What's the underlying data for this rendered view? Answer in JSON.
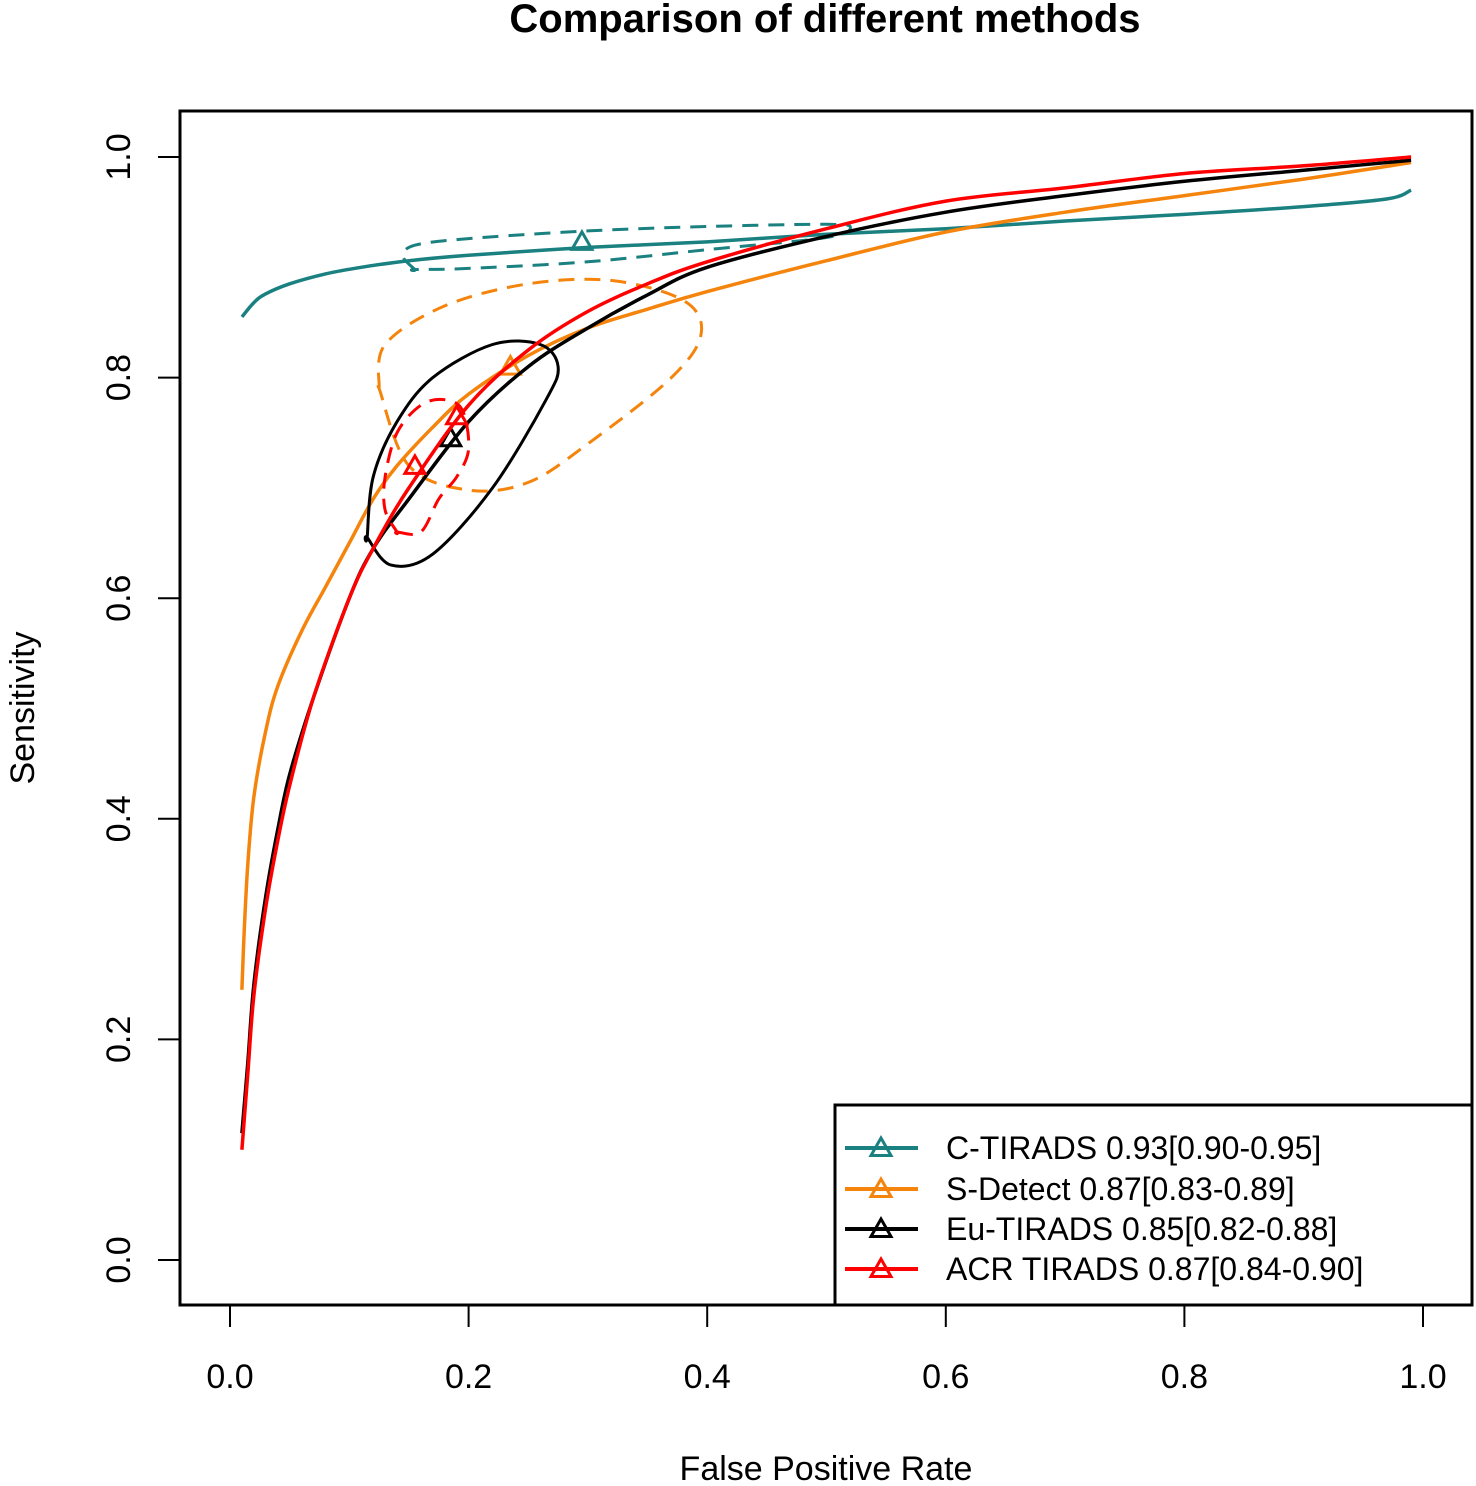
{
  "chart_data": {
    "type": "line",
    "title": "Comparison of different methods",
    "xlabel": "False Positive Rate",
    "ylabel": "Sensitivity",
    "xlim": [
      0.0,
      1.0
    ],
    "ylim": [
      0.0,
      1.0
    ],
    "x_ticks": [
      "0.0",
      "0.2",
      "0.4",
      "0.6",
      "0.8",
      "1.0"
    ],
    "y_ticks": [
      "0.0",
      "0.2",
      "0.4",
      "0.6",
      "0.8",
      "1.0"
    ],
    "grid": false,
    "legend_position": "bottom-right",
    "series": [
      {
        "name": "C-TIRADS",
        "legend_label": "C-TIRADS 0.93[0.90-0.95]",
        "color": "#1a8080",
        "marker": "triangle",
        "summary_point": [
          0.295,
          0.923
        ],
        "roc": [
          [
            0.01,
            0.855
          ],
          [
            0.02,
            0.868
          ],
          [
            0.03,
            0.876
          ],
          [
            0.05,
            0.885
          ],
          [
            0.08,
            0.894
          ],
          [
            0.11,
            0.9
          ],
          [
            0.15,
            0.906
          ],
          [
            0.2,
            0.911
          ],
          [
            0.3,
            0.918
          ],
          [
            0.4,
            0.923
          ],
          [
            0.5,
            0.93
          ],
          [
            0.6,
            0.935
          ],
          [
            0.7,
            0.942
          ],
          [
            0.8,
            0.948
          ],
          [
            0.9,
            0.955
          ],
          [
            0.97,
            0.962
          ],
          [
            0.99,
            0.97
          ]
        ],
        "confidence_region": [
          [
            0.155,
            0.898
          ],
          [
            0.145,
            0.91
          ],
          [
            0.155,
            0.92
          ],
          [
            0.2,
            0.926
          ],
          [
            0.3,
            0.933
          ],
          [
            0.4,
            0.937
          ],
          [
            0.5,
            0.939
          ],
          [
            0.52,
            0.936
          ],
          [
            0.5,
            0.927
          ],
          [
            0.4,
            0.916
          ],
          [
            0.3,
            0.905
          ],
          [
            0.2,
            0.899
          ],
          [
            0.155,
            0.898
          ]
        ]
      },
      {
        "name": "S-Detect",
        "legend_label": "S-Detect 0.87[0.83-0.89]",
        "color": "#f5840c",
        "marker": "triangle",
        "summary_point": [
          0.235,
          0.81
        ],
        "roc": [
          [
            0.01,
            0.245
          ],
          [
            0.012,
            0.3
          ],
          [
            0.015,
            0.36
          ],
          [
            0.02,
            0.42
          ],
          [
            0.03,
            0.48
          ],
          [
            0.04,
            0.52
          ],
          [
            0.06,
            0.57
          ],
          [
            0.08,
            0.61
          ],
          [
            0.1,
            0.65
          ],
          [
            0.12,
            0.69
          ],
          [
            0.14,
            0.72
          ],
          [
            0.17,
            0.755
          ],
          [
            0.2,
            0.785
          ],
          [
            0.25,
            0.82
          ],
          [
            0.3,
            0.845
          ],
          [
            0.35,
            0.862
          ],
          [
            0.4,
            0.878
          ],
          [
            0.5,
            0.906
          ],
          [
            0.6,
            0.932
          ],
          [
            0.7,
            0.95
          ],
          [
            0.8,
            0.965
          ],
          [
            0.9,
            0.98
          ],
          [
            0.99,
            0.995
          ]
        ],
        "confidence_region": [
          [
            0.125,
            0.79
          ],
          [
            0.13,
            0.83
          ],
          [
            0.18,
            0.865
          ],
          [
            0.25,
            0.885
          ],
          [
            0.32,
            0.888
          ],
          [
            0.38,
            0.87
          ],
          [
            0.395,
            0.84
          ],
          [
            0.37,
            0.8
          ],
          [
            0.3,
            0.74
          ],
          [
            0.25,
            0.705
          ],
          [
            0.2,
            0.698
          ],
          [
            0.15,
            0.72
          ],
          [
            0.125,
            0.79
          ]
        ]
      },
      {
        "name": "Eu-TIRADS",
        "legend_label": "Eu-TIRADS 0.85[0.82-0.88]",
        "color": "#000000",
        "marker": "triangle",
        "summary_point": [
          0.185,
          0.745
        ],
        "roc": [
          [
            0.01,
            0.115
          ],
          [
            0.015,
            0.18
          ],
          [
            0.02,
            0.25
          ],
          [
            0.03,
            0.33
          ],
          [
            0.04,
            0.39
          ],
          [
            0.05,
            0.44
          ],
          [
            0.07,
            0.51
          ],
          [
            0.1,
            0.6
          ],
          [
            0.12,
            0.645
          ],
          [
            0.15,
            0.69
          ],
          [
            0.2,
            0.76
          ],
          [
            0.25,
            0.81
          ],
          [
            0.3,
            0.845
          ],
          [
            0.35,
            0.875
          ],
          [
            0.4,
            0.9
          ],
          [
            0.5,
            0.928
          ],
          [
            0.6,
            0.95
          ],
          [
            0.7,
            0.965
          ],
          [
            0.8,
            0.978
          ],
          [
            0.9,
            0.988
          ],
          [
            0.99,
            0.997
          ]
        ],
        "confidence_region": [
          [
            0.115,
            0.655
          ],
          [
            0.135,
            0.63
          ],
          [
            0.17,
            0.64
          ],
          [
            0.22,
            0.7
          ],
          [
            0.265,
            0.78
          ],
          [
            0.275,
            0.81
          ],
          [
            0.26,
            0.83
          ],
          [
            0.22,
            0.83
          ],
          [
            0.17,
            0.8
          ],
          [
            0.14,
            0.76
          ],
          [
            0.12,
            0.71
          ],
          [
            0.115,
            0.655
          ]
        ]
      },
      {
        "name": "ACR TIRADS",
        "legend_label": "ACR TIRADS 0.87[0.84-0.90]",
        "color": "#ff0000",
        "marker": "triangle",
        "summary_point": [
          0.155,
          0.72
        ],
        "extra_points": [
          [
            0.19,
            0.765
          ]
        ],
        "roc": [
          [
            0.01,
            0.1
          ],
          [
            0.015,
            0.17
          ],
          [
            0.02,
            0.24
          ],
          [
            0.03,
            0.32
          ],
          [
            0.04,
            0.38
          ],
          [
            0.05,
            0.43
          ],
          [
            0.07,
            0.51
          ],
          [
            0.1,
            0.6
          ],
          [
            0.12,
            0.645
          ],
          [
            0.15,
            0.7
          ],
          [
            0.2,
            0.775
          ],
          [
            0.25,
            0.825
          ],
          [
            0.3,
            0.86
          ],
          [
            0.35,
            0.885
          ],
          [
            0.4,
            0.905
          ],
          [
            0.5,
            0.935
          ],
          [
            0.6,
            0.96
          ],
          [
            0.7,
            0.972
          ],
          [
            0.8,
            0.985
          ],
          [
            0.9,
            0.992
          ],
          [
            0.99,
            1.0
          ]
        ],
        "confidence_region": [
          [
            0.14,
            0.66
          ],
          [
            0.16,
            0.66
          ],
          [
            0.175,
            0.69
          ],
          [
            0.19,
            0.71
          ],
          [
            0.2,
            0.735
          ],
          [
            0.195,
            0.77
          ],
          [
            0.18,
            0.78
          ],
          [
            0.16,
            0.775
          ],
          [
            0.14,
            0.75
          ],
          [
            0.13,
            0.71
          ],
          [
            0.13,
            0.68
          ],
          [
            0.14,
            0.66
          ]
        ]
      }
    ]
  }
}
